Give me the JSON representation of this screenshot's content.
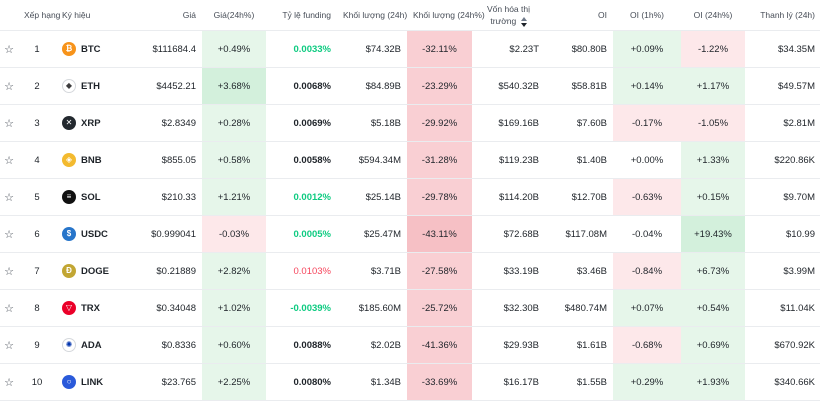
{
  "headers": {
    "rank": "Xếp hạng",
    "symbol": "Ký hiệu",
    "price": "Giá",
    "change24h": "Giá(24h%)",
    "funding": "Tỷ lệ funding",
    "volume24h": "Khối lượng (24h)",
    "volume_change24h": "Khối lượng (24h%)",
    "mcap": "Vốn hóa thị trường",
    "oi": "OI",
    "oi1h": "OI (1h%)",
    "oi24h": "OI (24h%)",
    "liquidation": "Thanh lý (24h)"
  },
  "rows": [
    {
      "rank": "1",
      "symbol": "BTC",
      "icon": "btc-icon",
      "color": "#f7931a",
      "price": "$111684.4",
      "change24h": "+0.49%",
      "funding": "0.0033%",
      "volume24h": "$74.32B",
      "volume_change24h": "-32.11%",
      "mcap": "$2.23T",
      "oi": "$80.80B",
      "oi1h": "+0.09%",
      "oi24h": "-1.22%",
      "liquidation": "$34.35M"
    },
    {
      "rank": "2",
      "symbol": "ETH",
      "icon": "eth-icon",
      "color": "#ffffff",
      "price": "$4452.21",
      "change24h": "+3.68%",
      "funding": "0.0068%",
      "volume24h": "$84.89B",
      "volume_change24h": "-23.29%",
      "mcap": "$540.32B",
      "oi": "$58.81B",
      "oi1h": "+0.14%",
      "oi24h": "+1.17%",
      "liquidation": "$49.57M"
    },
    {
      "rank": "3",
      "symbol": "XRP",
      "icon": "xrp-icon",
      "color": "#23292f",
      "price": "$2.8349",
      "change24h": "+0.28%",
      "funding": "0.0069%",
      "volume24h": "$5.18B",
      "volume_change24h": "-29.92%",
      "mcap": "$169.16B",
      "oi": "$7.60B",
      "oi1h": "-0.17%",
      "oi24h": "-1.05%",
      "liquidation": "$2.81M"
    },
    {
      "rank": "4",
      "symbol": "BNB",
      "icon": "bnb-icon",
      "color": "#f3ba2f",
      "price": "$855.05",
      "change24h": "+0.58%",
      "funding": "0.0058%",
      "volume24h": "$594.34M",
      "volume_change24h": "-31.28%",
      "mcap": "$119.23B",
      "oi": "$1.40B",
      "oi1h": "+0.00%",
      "oi24h": "+1.33%",
      "liquidation": "$220.86K"
    },
    {
      "rank": "5",
      "symbol": "SOL",
      "icon": "sol-icon",
      "color": "#111111",
      "price": "$210.33",
      "change24h": "+1.21%",
      "funding": "0.0012%",
      "volume24h": "$25.14B",
      "volume_change24h": "-29.78%",
      "mcap": "$114.20B",
      "oi": "$12.70B",
      "oi1h": "-0.63%",
      "oi24h": "+0.15%",
      "liquidation": "$9.70M"
    },
    {
      "rank": "6",
      "symbol": "USDC",
      "icon": "usdc-icon",
      "color": "#2775ca",
      "price": "$0.999041",
      "change24h": "-0.03%",
      "funding": "0.0005%",
      "volume24h": "$25.47M",
      "volume_change24h": "-43.11%",
      "mcap": "$72.68B",
      "oi": "$117.08M",
      "oi1h": "-0.04%",
      "oi24h": "+19.43%",
      "liquidation": "$10.99"
    },
    {
      "rank": "7",
      "symbol": "DOGE",
      "icon": "doge-icon",
      "color": "#c2a633",
      "price": "$0.21889",
      "change24h": "+2.82%",
      "funding": "0.0103%",
      "volume24h": "$3.71B",
      "volume_change24h": "-27.58%",
      "mcap": "$33.19B",
      "oi": "$3.46B",
      "oi1h": "-0.84%",
      "oi24h": "+6.73%",
      "liquidation": "$3.99M"
    },
    {
      "rank": "8",
      "symbol": "TRX",
      "icon": "trx-icon",
      "color": "#eb0029",
      "price": "$0.34048",
      "change24h": "+1.02%",
      "funding": "-0.0039%",
      "volume24h": "$185.60M",
      "volume_change24h": "-25.72%",
      "mcap": "$32.30B",
      "oi": "$480.74M",
      "oi1h": "+0.07%",
      "oi24h": "+0.54%",
      "liquidation": "$11.04K"
    },
    {
      "rank": "9",
      "symbol": "ADA",
      "icon": "ada-icon",
      "color": "#ffffff",
      "price": "$0.8336",
      "change24h": "+0.60%",
      "funding": "0.0088%",
      "volume24h": "$2.02B",
      "volume_change24h": "-41.36%",
      "mcap": "$29.93B",
      "oi": "$1.61B",
      "oi1h": "-0.68%",
      "oi24h": "+0.69%",
      "liquidation": "$670.92K"
    },
    {
      "rank": "10",
      "symbol": "LINK",
      "icon": "link-icon",
      "color": "#2a5ada",
      "price": "$23.765",
      "change24h": "+2.25%",
      "funding": "0.0080%",
      "volume24h": "$1.34B",
      "volume_change24h": "-33.69%",
      "mcap": "$16.17B",
      "oi": "$1.55B",
      "oi1h": "+0.29%",
      "oi24h": "+1.93%",
      "liquidation": "$340.66K"
    }
  ],
  "row_styles": {
    "change24h": [
      "g1",
      "g2",
      "g1",
      "g1",
      "g1",
      "r1",
      "g1",
      "g1",
      "g1",
      "g1"
    ],
    "funding": [
      "pos",
      "norm",
      "norm",
      "norm",
      "pos",
      "pos",
      "neg",
      "pos",
      "norm",
      "norm"
    ],
    "volume_change24h": [
      "r2",
      "r2",
      "r2",
      "r2",
      "r2",
      "r3",
      "r2",
      "r2",
      "r2",
      "r2"
    ],
    "oi1h": [
      "g1",
      "g1",
      "r1",
      "",
      "r1",
      "",
      "r1",
      "g1",
      "r1",
      "g1"
    ],
    "oi24h": [
      "r1",
      "g1",
      "r1",
      "g1",
      "g1",
      "g2",
      "g1",
      "g1",
      "g1",
      "g1"
    ]
  }
}
